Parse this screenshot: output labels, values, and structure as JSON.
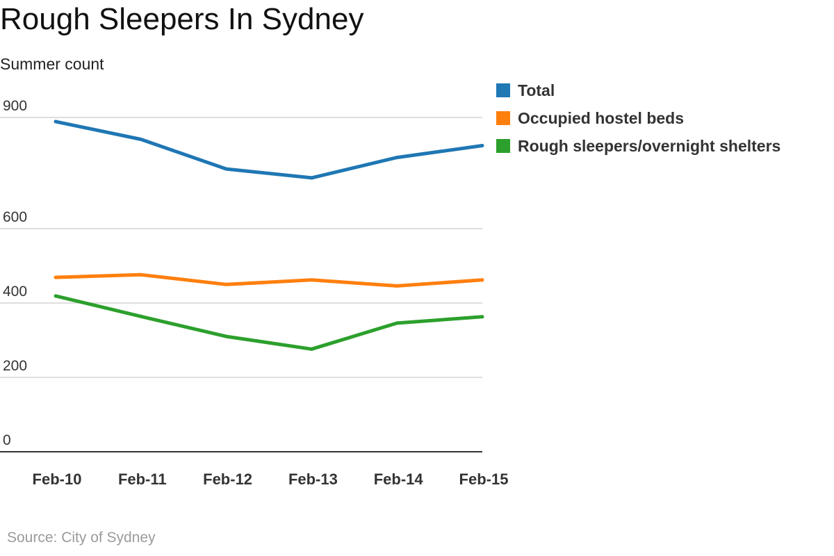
{
  "chart_data": {
    "type": "line",
    "title": "Rough Sleepers In Sydney",
    "subtitle": "Summer count",
    "source": "Source: City of Sydney",
    "categories": [
      "Feb-10",
      "Feb-11",
      "Feb-12",
      "Feb-13",
      "Feb-14",
      "Feb-15"
    ],
    "y_ticks": [
      0,
      200,
      400,
      600,
      900
    ],
    "ylim": [
      0,
      900
    ],
    "grid": true,
    "legend_position": "top-right",
    "series": [
      {
        "name": "Total",
        "color": "#1f77b4",
        "values": [
          889,
          841,
          761,
          737,
          792,
          824
        ]
      },
      {
        "name": "Occupied hostel beds",
        "color": "#ff7f0e",
        "values": [
          469,
          476,
          450,
          462,
          446,
          462
        ]
      },
      {
        "name": "Rough sleepers/overnight shelters",
        "color": "#2ca02c",
        "values": [
          419,
          364,
          310,
          276,
          346,
          363
        ]
      }
    ]
  }
}
